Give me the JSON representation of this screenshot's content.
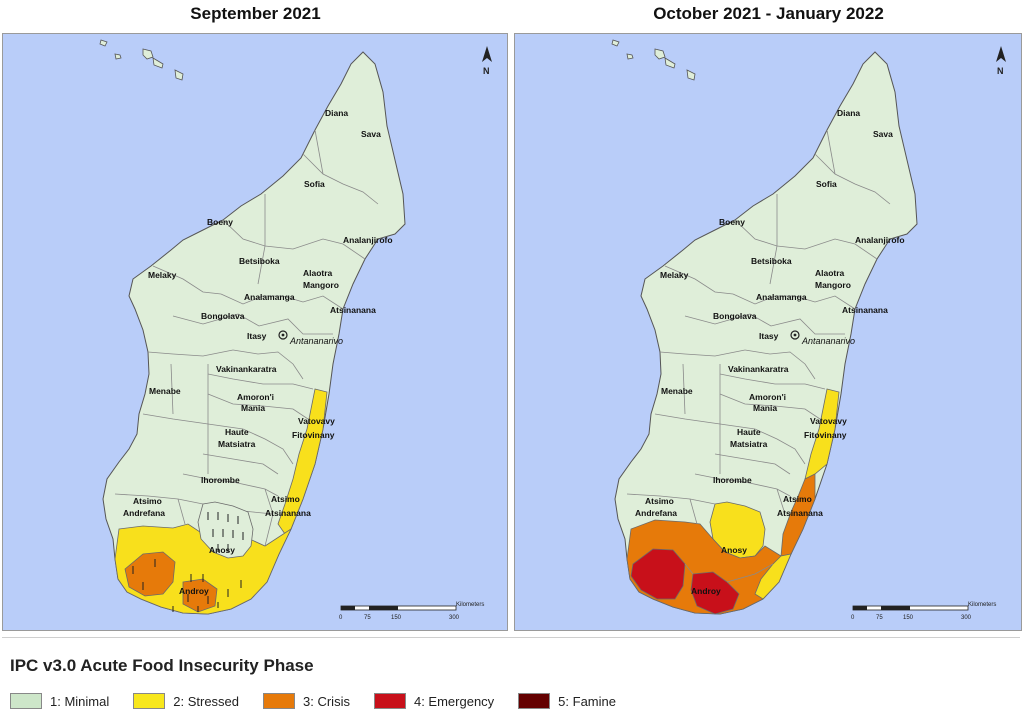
{
  "maps": [
    {
      "title": "September 2021",
      "regions": {
        "diana": "Diana",
        "sava": "Sava",
        "sofia": "Sofia",
        "boeny": "Boeny",
        "analanjirofo": "Analanjirofo",
        "melaky": "Melaky",
        "betsiboka": "Betsiboka",
        "alaotra1": "Alaotra",
        "alaotra2": "Mangoro",
        "analamanga": "Analamanga",
        "bongolava": "Bongolava",
        "atsinanana": "Atsinanana",
        "itasy": "Itasy",
        "capital": "Antananarivo",
        "vakinankaratra": "Vakinankaratra",
        "amoroni1": "Amoron'i",
        "amoroni2": "Mania",
        "menabe": "Menabe",
        "vatovavy1": "Vatovavy",
        "vatovavy2": "Fitovinany",
        "haute1": "Haute",
        "haute2": "Matsiatra",
        "ihorombe": "Ihorombe",
        "atsimoandrefana1": "Atsimo",
        "atsimoandrefana2": "Andrefana",
        "atsimoatsinanana1": "Atsimo",
        "atsimoatsinanana2": "Atsinanana",
        "anosy": "Anosy",
        "androy": "Androy"
      },
      "scale": {
        "label": "Kilometers",
        "ticks": [
          "0",
          "75",
          "150",
          "300"
        ]
      },
      "north_label": "N"
    },
    {
      "title": "October 2021 - January 2022",
      "regions": {
        "diana": "Diana",
        "sava": "Sava",
        "sofia": "Sofia",
        "boeny": "Boeny",
        "analanjirofo": "Analanjirofo",
        "melaky": "Melaky",
        "betsiboka": "Betsiboka",
        "alaotra1": "Alaotra",
        "alaotra2": "Mangoro",
        "analamanga": "Analamanga",
        "bongolava": "Bongolava",
        "atsinanana": "Atsinanana",
        "itasy": "Itasy",
        "capital": "Antananarivo",
        "vakinankaratra": "Vakinankaratra",
        "amoroni1": "Amoron'i",
        "amoroni2": "Mania",
        "menabe": "Menabe",
        "vatovavy1": "Vatovavy",
        "vatovavy2": "Fitovinany",
        "haute1": "Haute",
        "haute2": "Matsiatra",
        "ihorombe": "Ihorombe",
        "atsimoandrefana1": "Atsimo",
        "atsimoandrefana2": "Andrefana",
        "atsimoatsinanana1": "Atsimo",
        "atsimoatsinanana2": "Atsinanana",
        "anosy": "Anosy",
        "androy": "Androy"
      },
      "scale": {
        "label": "Kilometers",
        "ticks": [
          "0",
          "75",
          "150",
          "300"
        ]
      },
      "north_label": "N"
    }
  ],
  "legend": {
    "title": "IPC v3.0 Acute Food Insecurity Phase",
    "items": [
      {
        "label": "1: Minimal",
        "color": "#cde6c9"
      },
      {
        "label": "2: Stressed",
        "color": "#f8e71c"
      },
      {
        "label": "3: Crisis",
        "color": "#e67a0a"
      },
      {
        "label": "4: Emergency",
        "color": "#c8101a"
      },
      {
        "label": "5: Famine",
        "color": "#640000"
      }
    ]
  },
  "colors": {
    "ocean": "#b9cdf9",
    "minimal": "#dfeed9",
    "stressed": "#f8e01c",
    "crisis": "#e67a0a",
    "emergency": "#c8101a",
    "border": "#7a7a7a"
  }
}
